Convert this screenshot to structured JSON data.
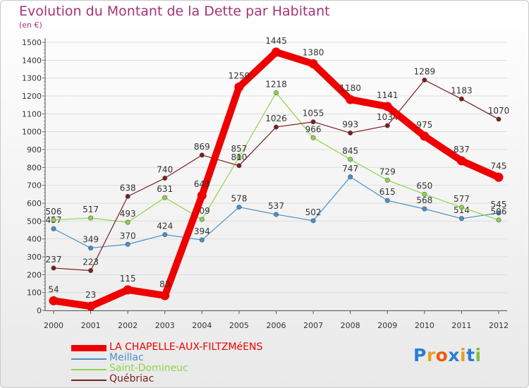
{
  "chart_data": {
    "type": "line",
    "title": "Evolution du Montant de la Dette par Habitant",
    "unit_label": "(en €)",
    "xlabel": "",
    "ylabel": "",
    "ylim": [
      0,
      1500
    ],
    "y_ticks": [
      0,
      100,
      200,
      300,
      400,
      500,
      600,
      700,
      800,
      900,
      1000,
      1100,
      1200,
      1300,
      1400,
      1500
    ],
    "grid": true,
    "categories": [
      "2000",
      "2001",
      "2002",
      "2003",
      "2004",
      "2005",
      "2006",
      "2007",
      "2008",
      "2009",
      "2010",
      "2011",
      "2012"
    ],
    "series": [
      {
        "name": "Meillac",
        "color": "#4a8fc8",
        "values": [
          457,
          349,
          370,
          424,
          394,
          578,
          537,
          502,
          747,
          615,
          568,
          514,
          545
        ]
      },
      {
        "name": "Saint-Domineuc",
        "color": "#8fd44c",
        "values": [
          506,
          517,
          493,
          631,
          509,
          857,
          1218,
          966,
          845,
          729,
          650,
          577,
          506
        ]
      },
      {
        "name": "Québriac",
        "color": "#7a1f1f",
        "values": [
          237,
          223,
          638,
          740,
          869,
          810,
          1026,
          1055,
          993,
          1034,
          1289,
          1183,
          1070
        ]
      },
      {
        "name": "LA CHAPELLE-AUX-FILTZMéENS",
        "color": "#ee0000",
        "values": [
          54,
          23,
          115,
          83,
          643,
          1250,
          1445,
          1380,
          1180,
          1141,
          975,
          837,
          745
        ]
      }
    ],
    "legend_order": [
      3,
      0,
      1,
      2
    ],
    "legend_position": "bottom-left"
  },
  "logo": {
    "text": "Proxiti",
    "letter_colors": [
      "#2a7fd4",
      "#e8a020",
      "#e85d10",
      "#2a7fd4",
      "#e8a020",
      "#2a7fd4",
      "#80c040"
    ]
  }
}
